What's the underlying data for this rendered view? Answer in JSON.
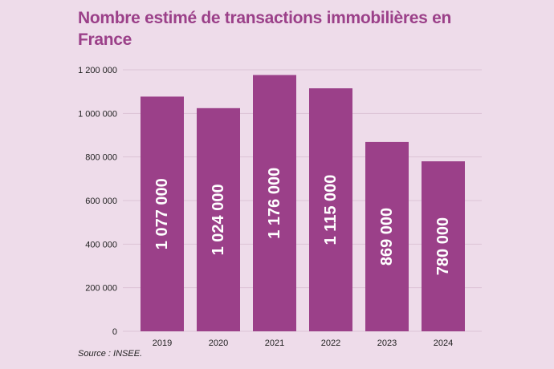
{
  "chart_data": {
    "type": "bar",
    "title": "Nombre estimé de transactions immobilières en France",
    "categories": [
      "2019",
      "2020",
      "2021",
      "2022",
      "2023",
      "2024"
    ],
    "values": [
      1077000,
      1024000,
      1176000,
      1115000,
      869000,
      780000
    ],
    "data_labels": [
      "1 077 000",
      "1 024 000",
      "1 176 000",
      "1 115 000",
      "869 000",
      "780 000"
    ],
    "y_ticks": [
      0,
      200000,
      400000,
      600000,
      800000,
      1000000,
      1200000
    ],
    "y_tick_labels": [
      "0",
      "200 000",
      "400 000",
      "600 000",
      "800 000",
      "1 000 000",
      "1 200 000"
    ],
    "ylim": [
      0,
      1200000
    ],
    "xlabel": "",
    "ylabel": "",
    "grid": true,
    "bar_color": "#9b4089",
    "source": "Source : INSEE."
  }
}
